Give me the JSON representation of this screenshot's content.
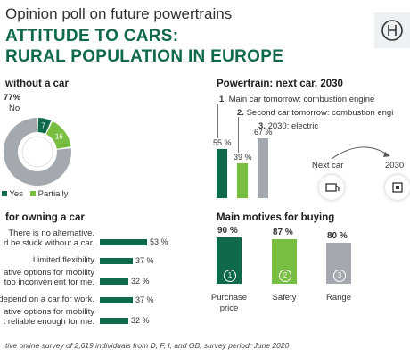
{
  "header": {
    "kicker": "Opinion poll on future powertrains",
    "title_line1": "ATTITUDE TO CARS:",
    "title_line2": "RURAL POPULATION IN EUROPE"
  },
  "footer": "tive online survey of 2,619 individuals from D, F, I, and GB, survey period: June 2020",
  "colors": {
    "green_dark": "#0f6a4c",
    "green_light": "#78be41",
    "gray": "#a3a9ae"
  },
  "chart_data": [
    {
      "type": "pie",
      "title": "without a car",
      "slices": [
        {
          "label": "No",
          "value": 77,
          "display": "77%",
          "color": "#a3a9ae"
        },
        {
          "label": "Yes",
          "value": 7,
          "display": "7",
          "color": "#0f6a4c"
        },
        {
          "label": "Partially",
          "value": 16,
          "display": "16",
          "color": "#78be41"
        }
      ],
      "legend": [
        "Yes",
        "Partially"
      ]
    },
    {
      "type": "bar",
      "title": "Powertrain: next car, 2030",
      "series": [
        {
          "index": "1.",
          "name": "Main car tomorrow: combustion engine",
          "value": 55,
          "display": "55 %",
          "color": "#0f6a4c"
        },
        {
          "index": "2.",
          "name": "Second car tomorrow: combustion engi",
          "value": 39,
          "display": "39 %",
          "color": "#78be41"
        },
        {
          "index": "3.",
          "name": "2030: electric",
          "value": 67,
          "display": "67 %",
          "color": "#a3a9ae"
        }
      ],
      "ylim": [
        0,
        100
      ],
      "annotation": {
        "from": "Next car",
        "to": "2030"
      }
    },
    {
      "type": "bar",
      "orientation": "horizontal",
      "title": "for owning a car",
      "categories": [
        [
          "There is no alternative.",
          "d be stuck without a car."
        ],
        [
          "Limited flexibility"
        ],
        [
          "ative options for mobility",
          "too inconvenient for me."
        ],
        [
          "depend on a car for work."
        ],
        [
          "ative options for mobility",
          "t reliable enough for me."
        ]
      ],
      "values": [
        53,
        37,
        32,
        37,
        32
      ],
      "display": [
        "53 %",
        "37 %",
        "32 %",
        "37 %",
        "32 %"
      ],
      "xlim": [
        0,
        100
      ]
    },
    {
      "type": "bar",
      "title": "Main motives for buying",
      "categories": [
        [
          "Purchase",
          "price"
        ],
        [
          "Safety"
        ],
        [
          "Range"
        ]
      ],
      "numbers": [
        "1",
        "2",
        "3"
      ],
      "values": [
        90,
        87,
        80
      ],
      "display": [
        "90 %",
        "87 %",
        "80 %"
      ],
      "colors": [
        "#0f6a4c",
        "#78be41",
        "#a3a9ae"
      ],
      "ylim": [
        0,
        100
      ]
    }
  ]
}
